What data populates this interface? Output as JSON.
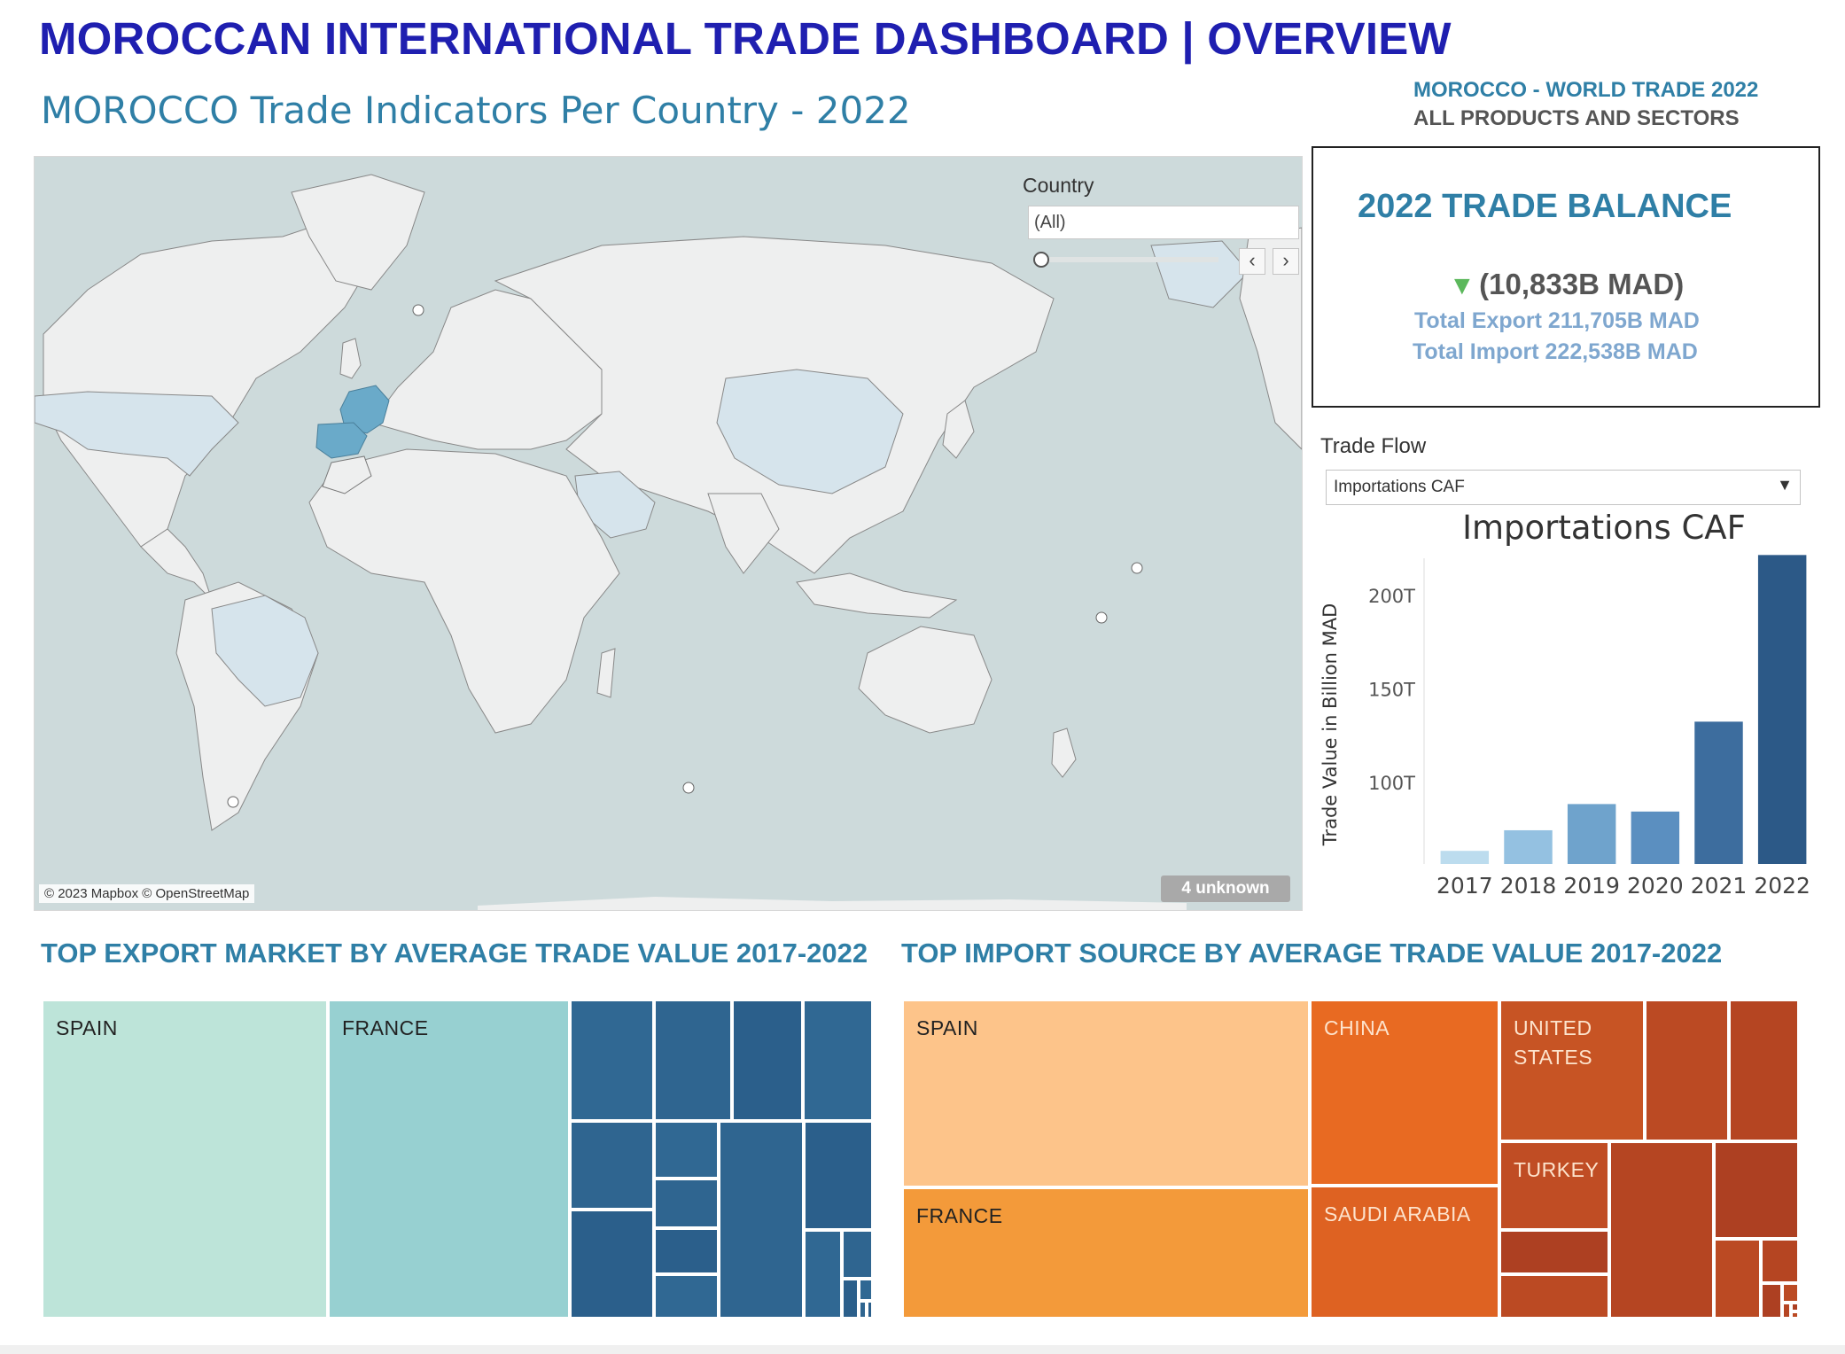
{
  "header": {
    "title": "MOROCCAN INTERNATIONAL TRADE DASHBOARD | OVERVIEW",
    "subtitle": "MOROCCO Trade Indicators Per Country - 2022",
    "world_trade": "MOROCCO - WORLD TRADE 2022",
    "all_products": "ALL PRODUCTS AND SECTORS"
  },
  "map": {
    "country_filter_label": "Country",
    "country_filter_value": "(All)",
    "prev_label": "‹",
    "next_label": "›",
    "attribution": "© 2023 Mapbox © OpenStreetMap",
    "unknown_badge": "4 unknown",
    "highlight_colors": {
      "strong": "#6aaac9",
      "light": "#d6e4ec",
      "land": "#eeefef",
      "sea": "#cddadb"
    }
  },
  "kpi": {
    "title": "2022  TRADE BALANCE",
    "arrow_icon": "▼",
    "balance": "(10,833B MAD)",
    "total_export": "Total Export 211,705B MAD",
    "total_import": "Total Import 222,538B MAD"
  },
  "trade_flow": {
    "label": "Trade Flow",
    "selected": "Importations CAF"
  },
  "chart_data": [
    {
      "type": "bar",
      "title": "Importations CAF",
      "ylabel": "Trade Value in Billion MAD",
      "categories": [
        "2017",
        "2018",
        "2019",
        "2020",
        "2021",
        "2022"
      ],
      "values": [
        64,
        75,
        89,
        85,
        133,
        222
      ],
      "yticks": [
        "100T",
        "150T",
        "200T"
      ],
      "ytick_values": [
        100,
        150,
        200
      ],
      "ylim": [
        57,
        225
      ],
      "colors": [
        "#bcdcee",
        "#94c1e1",
        "#6fa3cc",
        "#5b8fc0",
        "#3d6d9e",
        "#2c5987"
      ]
    },
    {
      "type": "treemap",
      "title": "TOP EXPORT MARKET BY AVERAGE TRADE VALUE 2017-2022",
      "labels": [
        "SPAIN",
        "FRANCE"
      ]
    },
    {
      "type": "treemap",
      "title": "TOP IMPORT SOURCE BY AVERAGE TRADE VALUE 2017-2022",
      "labels": [
        "SPAIN",
        "FRANCE",
        "CHINA",
        "SAUDI ARABIA",
        "UNITED STATES",
        "TURKEY"
      ]
    }
  ]
}
